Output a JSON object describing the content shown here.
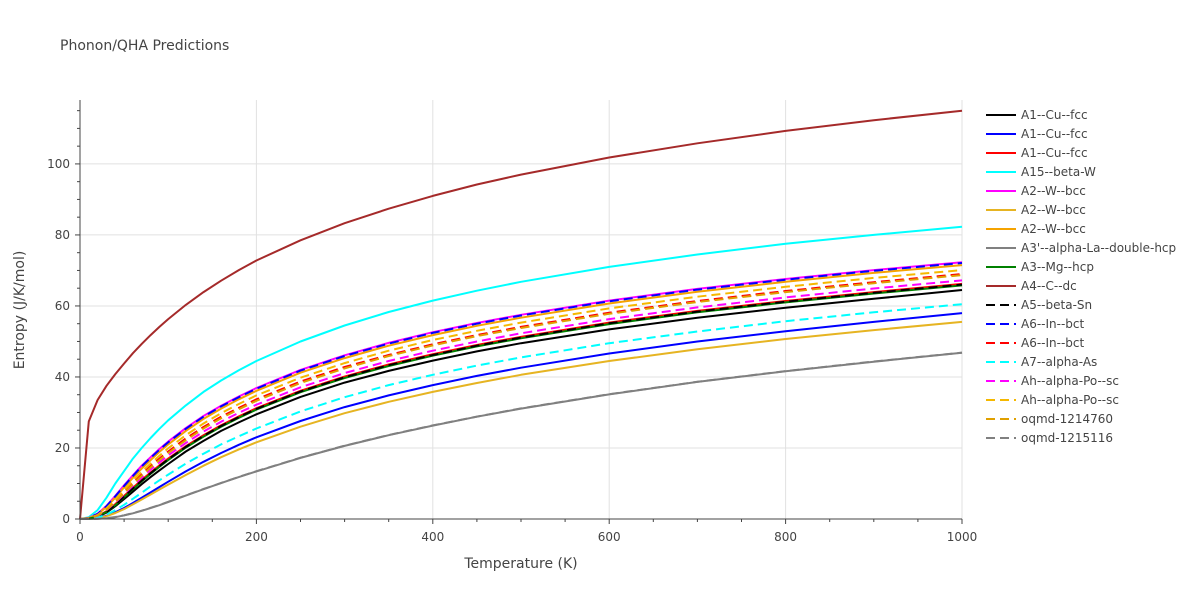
{
  "chart_data": {
    "type": "line",
    "title": "Phonon/QHA Predictions",
    "xlabel": "Temperature (K)",
    "ylabel": "Entropy (J/K/mol)",
    "xlim": [
      0,
      1000
    ],
    "ylim": [
      0,
      118
    ],
    "xticks": [
      0,
      200,
      400,
      600,
      800,
      1000
    ],
    "yticks": [
      0,
      20,
      40,
      60,
      80,
      100
    ],
    "grid": true,
    "legend_position": "right",
    "x": [
      0,
      10,
      20,
      30,
      40,
      50,
      60,
      70,
      80,
      90,
      100,
      120,
      140,
      160,
      180,
      200,
      250,
      300,
      350,
      400,
      450,
      500,
      600,
      700,
      800,
      900,
      1000
    ],
    "series": [
      {
        "name": "A1--Cu--fcc",
        "color": "#000000",
        "dash": "solid",
        "values": [
          0,
          0.1,
          0.6,
          1.8,
          3.6,
          5.6,
          7.7,
          9.8,
          11.8,
          13.7,
          15.5,
          19.0,
          22.0,
          24.8,
          27.2,
          29.5,
          34.4,
          38.4,
          41.7,
          44.6,
          47.2,
          49.5,
          53.4,
          56.7,
          59.5,
          62.0,
          64.5
        ]
      },
      {
        "name": "A1--Cu--fcc",
        "color": "#0000ff",
        "dash": "solid",
        "values": [
          0,
          0.05,
          0.3,
          0.9,
          1.9,
          3.1,
          4.5,
          6.0,
          7.5,
          9.0,
          10.5,
          13.4,
          16.1,
          18.6,
          20.9,
          23.0,
          27.6,
          31.5,
          34.8,
          37.7,
          40.3,
          42.6,
          46.6,
          50.0,
          52.9,
          55.5,
          58.0
        ]
      },
      {
        "name": "A1--Cu--fcc",
        "color": "#ff0000",
        "dash": "solid",
        "values": [
          0,
          0.15,
          0.8,
          2.2,
          4.2,
          6.5,
          8.8,
          11.0,
          13.1,
          15.1,
          17.0,
          20.5,
          23.6,
          26.4,
          28.9,
          31.2,
          36.1,
          40.1,
          43.5,
          46.4,
          49.0,
          51.3,
          55.3,
          58.6,
          61.4,
          63.9,
          66.2
        ]
      },
      {
        "name": "A15--beta-W",
        "color": "#00ffff",
        "dash": "solid",
        "values": [
          0,
          0.5,
          2.5,
          6.0,
          10.0,
          13.5,
          17.0,
          20.0,
          22.8,
          25.4,
          27.8,
          32.0,
          35.8,
          39.0,
          41.9,
          44.5,
          50.0,
          54.5,
          58.3,
          61.5,
          64.3,
          66.8,
          71.0,
          74.5,
          77.5,
          80.0,
          82.3
        ]
      },
      {
        "name": "A2--W--bcc",
        "color": "#ff00ff",
        "dash": "solid",
        "values": [
          0,
          0.3,
          1.5,
          3.7,
          6.5,
          9.5,
          12.3,
          15.0,
          17.4,
          19.7,
          21.8,
          25.6,
          29.0,
          31.9,
          34.5,
          36.9,
          42.0,
          46.1,
          49.6,
          52.6,
          55.2,
          57.5,
          61.5,
          64.8,
          67.6,
          70.1,
          72.3
        ]
      },
      {
        "name": "A2--W--bcc",
        "color": "#e6b422",
        "dash": "solid",
        "values": [
          0,
          0.04,
          0.25,
          0.8,
          1.7,
          2.8,
          4.1,
          5.5,
          6.9,
          8.3,
          9.7,
          12.4,
          15.0,
          17.4,
          19.6,
          21.6,
          26.0,
          29.8,
          33.0,
          35.8,
          38.3,
          40.6,
          44.5,
          47.8,
          50.7,
          53.2,
          55.5
        ]
      },
      {
        "name": "A2--W--bcc",
        "color": "#f5a300",
        "dash": "solid",
        "values": [
          0,
          0.25,
          1.3,
          3.4,
          6.0,
          8.9,
          11.6,
          14.2,
          16.6,
          18.9,
          21.0,
          24.8,
          28.2,
          31.1,
          33.7,
          36.1,
          41.2,
          45.3,
          48.8,
          51.8,
          54.4,
          56.7,
          60.7,
          64.0,
          66.8,
          69.3,
          71.5
        ]
      },
      {
        "name": "A3'--alpha-La--double-hcp",
        "color": "#808080",
        "dash": "solid",
        "values": [
          0,
          0.01,
          0.05,
          0.2,
          0.5,
          1.0,
          1.6,
          2.3,
          3.1,
          3.9,
          4.8,
          6.6,
          8.4,
          10.1,
          11.8,
          13.4,
          17.2,
          20.6,
          23.6,
          26.3,
          28.8,
          31.1,
          35.1,
          38.6,
          41.6,
          44.3,
          46.8
        ]
      },
      {
        "name": "A3--Mg--hcp",
        "color": "#008000",
        "dash": "solid",
        "values": [
          0,
          0.12,
          0.7,
          2.0,
          3.9,
          6.1,
          8.4,
          10.6,
          12.7,
          14.7,
          16.6,
          20.1,
          23.2,
          26.0,
          28.5,
          30.8,
          35.7,
          39.7,
          43.1,
          46.0,
          48.6,
          50.9,
          54.9,
          58.2,
          61.0,
          63.5,
          65.8
        ]
      },
      {
        "name": "A4--C--dc",
        "color": "#a52a2a",
        "dash": "solid",
        "values": [
          0,
          27.5,
          33.5,
          37.5,
          40.8,
          43.8,
          46.7,
          49.3,
          51.8,
          54.1,
          56.3,
          60.3,
          63.9,
          67.1,
          70.1,
          72.8,
          78.5,
          83.3,
          87.4,
          91.0,
          94.2,
          97.0,
          101.8,
          105.8,
          109.3,
          112.3,
          115.0
        ]
      },
      {
        "name": "A5--beta-Sn",
        "color": "#000000",
        "dash": "dash",
        "values": [
          0,
          0.14,
          0.75,
          2.1,
          4.0,
          6.3,
          8.6,
          10.8,
          12.9,
          14.9,
          16.8,
          20.3,
          23.4,
          26.2,
          28.7,
          31.0,
          35.9,
          39.9,
          43.3,
          46.2,
          48.8,
          51.1,
          55.1,
          58.4,
          61.2,
          63.7,
          66.0
        ]
      },
      {
        "name": "A6--In--bct",
        "color": "#0000ff",
        "dash": "dash",
        "values": [
          0,
          0.28,
          1.45,
          3.6,
          6.4,
          9.3,
          12.1,
          14.8,
          17.2,
          19.5,
          21.6,
          25.4,
          28.8,
          31.7,
          34.3,
          36.7,
          41.8,
          45.9,
          49.4,
          52.4,
          55.0,
          57.3,
          61.3,
          64.6,
          67.4,
          69.9,
          72.1
        ]
      },
      {
        "name": "A6--In--bct",
        "color": "#ff0000",
        "dash": "dash",
        "values": [
          0,
          0.2,
          1.05,
          2.8,
          5.1,
          7.7,
          10.2,
          12.6,
          14.9,
          17.0,
          19.0,
          22.7,
          25.9,
          28.8,
          31.3,
          33.7,
          38.7,
          42.8,
          46.2,
          49.2,
          51.8,
          54.1,
          58.1,
          61.4,
          64.2,
          66.7,
          69.0
        ]
      },
      {
        "name": "A7--alpha-As",
        "color": "#00ffff",
        "dash": "dash",
        "values": [
          0,
          0.06,
          0.4,
          1.2,
          2.5,
          4.0,
          5.7,
          7.4,
          9.2,
          10.9,
          12.5,
          15.6,
          18.4,
          21.0,
          23.3,
          25.5,
          30.3,
          34.3,
          37.7,
          40.6,
          43.2,
          45.5,
          49.5,
          52.8,
          55.7,
          58.2,
          60.5
        ]
      },
      {
        "name": "Ah--alpha-Po--sc",
        "color": "#ff00ff",
        "dash": "dash",
        "values": [
          0,
          0.17,
          0.9,
          2.5,
          4.6,
          7.0,
          9.4,
          11.7,
          13.9,
          15.9,
          17.9,
          21.4,
          24.6,
          27.4,
          29.9,
          32.2,
          37.1,
          41.1,
          44.5,
          47.4,
          50.0,
          52.3,
          56.3,
          59.6,
          62.4,
          64.9,
          67.2
        ]
      },
      {
        "name": "Ah--alpha-Po--sc",
        "color": "#f5b800",
        "dash": "dash",
        "values": [
          0,
          0.22,
          1.15,
          3.0,
          5.5,
          8.2,
          10.8,
          13.3,
          15.6,
          17.8,
          19.9,
          23.6,
          26.9,
          29.8,
          32.4,
          34.8,
          39.8,
          43.9,
          47.4,
          50.4,
          53.0,
          55.3,
          59.3,
          62.6,
          65.4,
          67.9,
          70.1
        ]
      },
      {
        "name": "oqmd-1214760",
        "color": "#e0a000",
        "dash": "dash",
        "values": [
          0,
          0.18,
          0.95,
          2.6,
          4.8,
          7.3,
          9.8,
          12.2,
          14.5,
          16.6,
          18.6,
          22.2,
          25.5,
          28.4,
          30.9,
          33.3,
          38.3,
          42.4,
          45.9,
          48.9,
          51.5,
          53.8,
          57.8,
          61.1,
          63.9,
          66.4,
          68.7
        ]
      },
      {
        "name": "oqmd-1215116",
        "color": "#808080",
        "dash": "dash",
        "values": [
          0,
          0.01,
          0.06,
          0.22,
          0.55,
          1.05,
          1.65,
          2.35,
          3.15,
          3.95,
          4.85,
          6.65,
          8.45,
          10.15,
          11.85,
          13.45,
          17.25,
          20.65,
          23.65,
          26.35,
          28.85,
          31.15,
          35.15,
          38.65,
          41.65,
          44.35,
          46.85
        ]
      }
    ]
  }
}
